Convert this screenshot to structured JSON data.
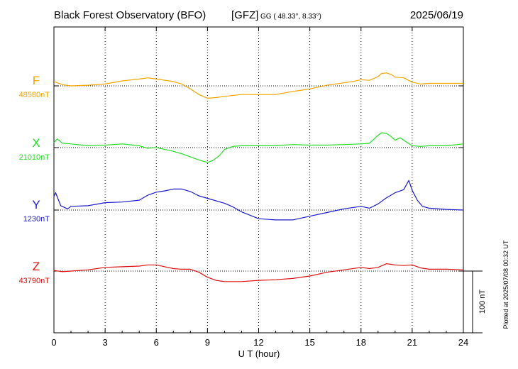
{
  "header": {
    "observatory": "Black Forest Observatory (BFO)",
    "institute": "[GFZ]",
    "coords": "GG ( 48.33°,   8.33°)",
    "date": "2025/06/19"
  },
  "footer_note": "Plotted at 2025/07/08 00:32 UT",
  "chart_data": {
    "type": "line",
    "xlabel": "U T (hour)",
    "xlim": [
      0,
      24
    ],
    "x_ticks": [
      "0",
      "3",
      "6",
      "9",
      "12",
      "15",
      "18",
      "21",
      "24"
    ],
    "scale_bar_label": "100 nT",
    "scale_bar_nT": 100,
    "series": [
      {
        "name": "F",
        "baseline_label": "48580nT",
        "baseline_nT": 48580,
        "color": "#f5a500",
        "x": [
          0,
          0.5,
          1,
          2,
          3,
          4,
          5,
          5.5,
          6,
          7,
          7.5,
          8,
          8.5,
          9,
          9.5,
          10,
          11,
          12,
          13,
          14,
          14.5,
          15,
          16,
          17,
          17.5,
          18,
          18.5,
          19,
          19.2,
          19.5,
          19.8,
          20,
          20.5,
          21,
          21.5,
          22,
          23,
          24
        ],
        "y": [
          48587,
          48582,
          48580,
          48581,
          48583,
          48588,
          48591,
          48593,
          48591,
          48587,
          48583,
          48575,
          48566,
          48560,
          48561,
          48563,
          48566,
          48566,
          48566,
          48571,
          48573,
          48575,
          48581,
          48585,
          48587,
          48590,
          48589,
          48595,
          48600,
          48601,
          48598,
          48594,
          48593,
          48586,
          48583,
          48584,
          48584,
          48584
        ]
      },
      {
        "name": "X",
        "baseline_label": "21010nT",
        "baseline_nT": 21010,
        "color": "#22dd22",
        "x": [
          0,
          0.2,
          0.5,
          1,
          2,
          3,
          4,
          5,
          5.5,
          6,
          6.5,
          7,
          7.5,
          8,
          8.5,
          9,
          9.3,
          9.7,
          10,
          10.5,
          11,
          12,
          13,
          14,
          15,
          16,
          17,
          18,
          18.5,
          19,
          19.2,
          19.5,
          19.8,
          20,
          20.3,
          20.6,
          21,
          21.5,
          22,
          23,
          24
        ],
        "y": [
          21018,
          21024,
          21017,
          21016,
          21013,
          21014,
          21016,
          21013,
          21009,
          21010,
          21007,
          21004,
          21000,
          20995,
          20990,
          20986,
          20989,
          20997,
          21007,
          21012,
          21013,
          21013,
          21013,
          21015,
          21014,
          21014,
          21015,
          21016,
          21017,
          21030,
          21034,
          21033,
          21027,
          21022,
          21026,
          21020,
          21013,
          21012,
          21013,
          21013,
          21016
        ]
      },
      {
        "name": "Y",
        "baseline_label": "1230nT",
        "baseline_nT": 1230,
        "color": "#1a1acc",
        "x": [
          0,
          0.1,
          0.4,
          0.8,
          1,
          2,
          3,
          4,
          5,
          5.5,
          6,
          6.5,
          7,
          7.5,
          8,
          8.5,
          9,
          10,
          10.5,
          11,
          12,
          13,
          14,
          15,
          16,
          17,
          18,
          18.5,
          19,
          19.5,
          20,
          20.5,
          20.8,
          21,
          21.3,
          21.6,
          22,
          23,
          24
        ],
        "y": [
          1252,
          1258,
          1237,
          1232,
          1236,
          1237,
          1242,
          1243,
          1246,
          1254,
          1259,
          1261,
          1264,
          1264,
          1260,
          1253,
          1249,
          1241,
          1235,
          1227,
          1216,
          1214,
          1214,
          1220,
          1226,
          1232,
          1236,
          1233,
          1240,
          1250,
          1258,
          1263,
          1278,
          1262,
          1246,
          1236,
          1233,
          1231,
          1230
        ]
      },
      {
        "name": "Z",
        "baseline_label": "43790nT",
        "baseline_nT": 43790,
        "color": "#dd1111",
        "x": [
          0,
          0.5,
          1,
          2,
          3,
          4,
          5,
          5.5,
          6,
          6.5,
          7,
          7.5,
          8,
          8.5,
          9,
          9.5,
          10,
          11,
          12,
          13,
          14,
          15,
          16,
          17,
          18,
          18.5,
          19,
          19.5,
          20,
          20.5,
          21,
          21.5,
          22,
          23,
          24
        ],
        "y": [
          43791,
          43789,
          43790,
          43792,
          43796,
          43797,
          43798,
          43800,
          43800,
          43797,
          43794,
          43793,
          43793,
          43788,
          43780,
          43775,
          43773,
          43773,
          43775,
          43776,
          43778,
          43782,
          43788,
          43792,
          43796,
          43794,
          43796,
          43802,
          43800,
          43799,
          43800,
          43795,
          43793,
          43793,
          43792
        ]
      }
    ]
  }
}
